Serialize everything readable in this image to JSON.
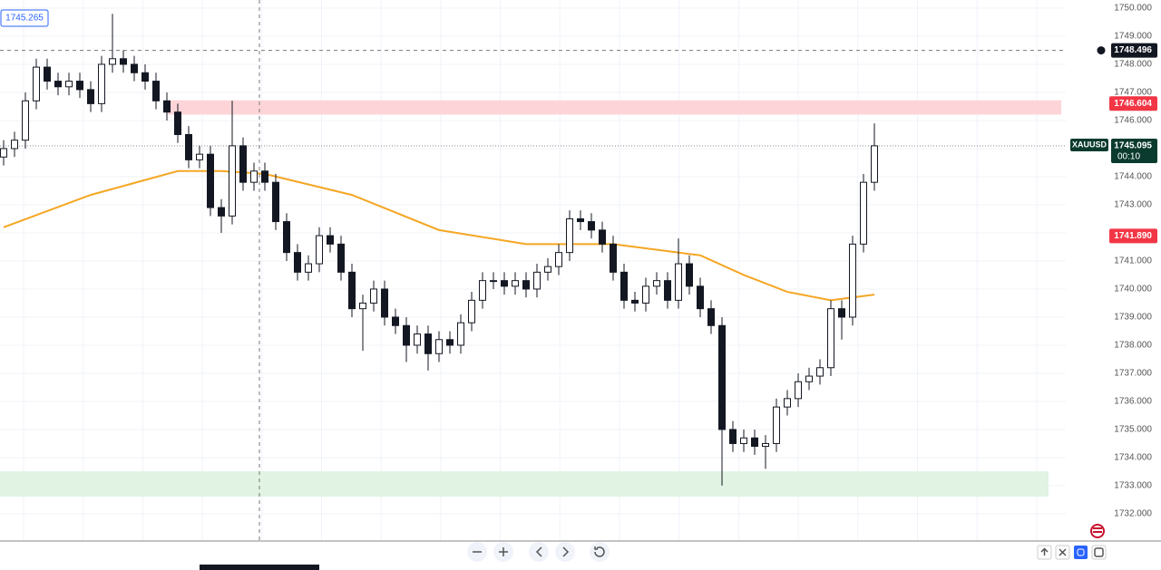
{
  "chart_data": {
    "type": "candlestick",
    "symbol": "XAUUSD",
    "ylim": [
      1731.03,
      1750.29
    ],
    "yticks": [
      {
        "value": 1732,
        "label": "1732.000"
      },
      {
        "value": 1733,
        "label": "1733.000"
      },
      {
        "value": 1734,
        "label": "1734.000"
      },
      {
        "value": 1735,
        "label": "1735.000"
      },
      {
        "value": 1736,
        "label": "1736.000"
      },
      {
        "value": 1737,
        "label": "1737.000"
      },
      {
        "value": 1738,
        "label": "1738.000"
      },
      {
        "value": 1739,
        "label": "1739.000"
      },
      {
        "value": 1740,
        "label": "1740.000"
      },
      {
        "value": 1741,
        "label": "1741.000"
      },
      {
        "value": 1742,
        "label": "1742.000"
      },
      {
        "value": 1743,
        "label": "1743.000"
      },
      {
        "value": 1744,
        "label": "1744.000"
      },
      {
        "value": 1745,
        "label": "1745.000"
      },
      {
        "value": 1746,
        "label": "1746.000"
      },
      {
        "value": 1747,
        "label": "1747.000"
      },
      {
        "value": 1748,
        "label": "1748.000"
      },
      {
        "value": 1749,
        "label": "1749.000"
      },
      {
        "value": 1750,
        "label": "1750.000"
      }
    ],
    "ohlc": [
      [
        1744.7,
        1745.3,
        1744.4,
        1745.0
      ],
      [
        1745.0,
        1745.6,
        1744.7,
        1745.3
      ],
      [
        1745.3,
        1747.0,
        1745.0,
        1746.7
      ],
      [
        1746.7,
        1748.2,
        1746.4,
        1747.9
      ],
      [
        1747.9,
        1748.2,
        1747.1,
        1747.4
      ],
      [
        1747.4,
        1747.7,
        1746.9,
        1747.2
      ],
      [
        1747.2,
        1747.7,
        1746.9,
        1747.4
      ],
      [
        1747.4,
        1747.7,
        1746.8,
        1747.1
      ],
      [
        1747.1,
        1747.4,
        1746.3,
        1746.6
      ],
      [
        1746.6,
        1748.3,
        1746.3,
        1748.0
      ],
      [
        1748.0,
        1749.8,
        1747.7,
        1748.2
      ],
      [
        1748.2,
        1748.5,
        1747.7,
        1748.0
      ],
      [
        1748.0,
        1748.3,
        1747.4,
        1747.7
      ],
      [
        1747.7,
        1748.0,
        1747.1,
        1747.4
      ],
      [
        1747.4,
        1747.7,
        1746.4,
        1746.7
      ],
      [
        1746.7,
        1747.0,
        1746.0,
        1746.3
      ],
      [
        1746.3,
        1746.6,
        1745.2,
        1745.5
      ],
      [
        1745.5,
        1745.8,
        1744.3,
        1744.6
      ],
      [
        1744.6,
        1745.1,
        1744.3,
        1744.8
      ],
      [
        1744.8,
        1745.1,
        1742.6,
        1742.9
      ],
      [
        1742.9,
        1743.2,
        1742.0,
        1742.6
      ],
      [
        1742.6,
        1746.7,
        1742.3,
        1745.1
      ],
      [
        1745.1,
        1745.4,
        1743.5,
        1743.8
      ],
      [
        1743.8,
        1744.5,
        1743.5,
        1744.2
      ],
      [
        1744.2,
        1744.5,
        1743.5,
        1743.8
      ],
      [
        1743.8,
        1744.1,
        1742.1,
        1742.4
      ],
      [
        1742.4,
        1742.7,
        1741.0,
        1741.3
      ],
      [
        1741.3,
        1741.6,
        1740.3,
        1740.6
      ],
      [
        1740.6,
        1741.2,
        1740.3,
        1740.9
      ],
      [
        1740.9,
        1742.2,
        1740.6,
        1741.9
      ],
      [
        1741.9,
        1742.2,
        1741.3,
        1741.6
      ],
      [
        1741.6,
        1741.9,
        1740.3,
        1740.6
      ],
      [
        1740.6,
        1740.9,
        1739.0,
        1739.3
      ],
      [
        1739.3,
        1739.8,
        1737.8,
        1739.5
      ],
      [
        1739.5,
        1740.3,
        1739.2,
        1740.0
      ],
      [
        1740.0,
        1740.3,
        1738.7,
        1739.0
      ],
      [
        1739.0,
        1739.3,
        1738.4,
        1738.7
      ],
      [
        1738.7,
        1739.0,
        1737.4,
        1738.0
      ],
      [
        1738.0,
        1738.7,
        1737.7,
        1738.4
      ],
      [
        1738.4,
        1738.7,
        1737.1,
        1737.7
      ],
      [
        1737.7,
        1738.5,
        1737.4,
        1738.2
      ],
      [
        1738.2,
        1738.5,
        1737.7,
        1738.0
      ],
      [
        1738.0,
        1739.1,
        1737.7,
        1738.8
      ],
      [
        1738.8,
        1739.9,
        1738.5,
        1739.6
      ],
      [
        1739.6,
        1740.6,
        1739.3,
        1740.3
      ],
      [
        1740.3,
        1740.6,
        1740.0,
        1740.3
      ],
      [
        1740.3,
        1740.6,
        1739.8,
        1740.1
      ],
      [
        1740.1,
        1740.6,
        1739.8,
        1740.3
      ],
      [
        1740.3,
        1740.6,
        1739.7,
        1740.0
      ],
      [
        1740.0,
        1740.9,
        1739.7,
        1740.6
      ],
      [
        1740.6,
        1741.1,
        1740.3,
        1740.8
      ],
      [
        1740.8,
        1741.6,
        1740.5,
        1741.3
      ],
      [
        1741.3,
        1742.8,
        1741.0,
        1742.5
      ],
      [
        1742.5,
        1742.8,
        1742.1,
        1742.4
      ],
      [
        1742.4,
        1742.7,
        1741.8,
        1742.1
      ],
      [
        1742.1,
        1742.4,
        1741.3,
        1741.6
      ],
      [
        1741.6,
        1741.9,
        1740.3,
        1740.6
      ],
      [
        1740.6,
        1740.9,
        1739.3,
        1739.6
      ],
      [
        1739.6,
        1739.9,
        1739.2,
        1739.5
      ],
      [
        1739.5,
        1740.4,
        1739.2,
        1740.1
      ],
      [
        1740.1,
        1740.6,
        1739.8,
        1740.3
      ],
      [
        1740.3,
        1740.6,
        1739.3,
        1739.6
      ],
      [
        1739.6,
        1741.8,
        1739.3,
        1740.9
      ],
      [
        1740.9,
        1741.2,
        1739.8,
        1740.1
      ],
      [
        1740.1,
        1740.4,
        1739.0,
        1739.3
      ],
      [
        1739.3,
        1739.6,
        1738.4,
        1738.7
      ],
      [
        1738.7,
        1739.0,
        1733.0,
        1735.0
      ],
      [
        1735.0,
        1735.3,
        1734.2,
        1734.5
      ],
      [
        1734.5,
        1735.0,
        1734.2,
        1734.7
      ],
      [
        1734.7,
        1735.0,
        1734.1,
        1734.4
      ],
      [
        1734.4,
        1734.8,
        1733.6,
        1734.5
      ],
      [
        1734.5,
        1736.1,
        1734.2,
        1735.8
      ],
      [
        1735.8,
        1736.4,
        1735.5,
        1736.1
      ],
      [
        1736.1,
        1737.0,
        1735.8,
        1736.7
      ],
      [
        1736.7,
        1737.2,
        1736.4,
        1736.9
      ],
      [
        1736.9,
        1737.5,
        1736.6,
        1737.2
      ],
      [
        1737.2,
        1739.6,
        1736.9,
        1739.3
      ],
      [
        1739.3,
        1739.6,
        1738.2,
        1739.0
      ],
      [
        1739.0,
        1741.9,
        1738.7,
        1741.6
      ],
      [
        1741.6,
        1744.1,
        1741.3,
        1743.8
      ],
      [
        1743.8,
        1745.9,
        1743.5,
        1745.1
      ]
    ],
    "moving_average": {
      "color": "#f5a623",
      "x": [
        0,
        8,
        16,
        20,
        24,
        32,
        40,
        48,
        52,
        56,
        64,
        68,
        72,
        76,
        80
      ],
      "values": [
        1742.2,
        1743.35,
        1744.2,
        1744.2,
        1744.1,
        1743.35,
        1742.1,
        1741.6,
        1741.6,
        1741.6,
        1741.2,
        1740.5,
        1739.9,
        1739.6,
        1739.8
      ]
    },
    "zones": [
      {
        "color": "#fdd5d8",
        "top": 1746.72,
        "bottom": 1746.21
      },
      {
        "color": "#e1f3e3",
        "top": 1733.51,
        "bottom": 1732.61
      }
    ],
    "crosshair": {
      "value": 1748.496,
      "label": "1748.496"
    },
    "last_price": {
      "value": 1745.095,
      "label": "1745.095",
      "countdown": "00:10"
    },
    "price_labels": [
      {
        "value": 1746.604,
        "label": "1746.604"
      },
      {
        "value": 1741.89,
        "label": "1741.890"
      }
    ],
    "corner_price": "1745.265"
  }
}
